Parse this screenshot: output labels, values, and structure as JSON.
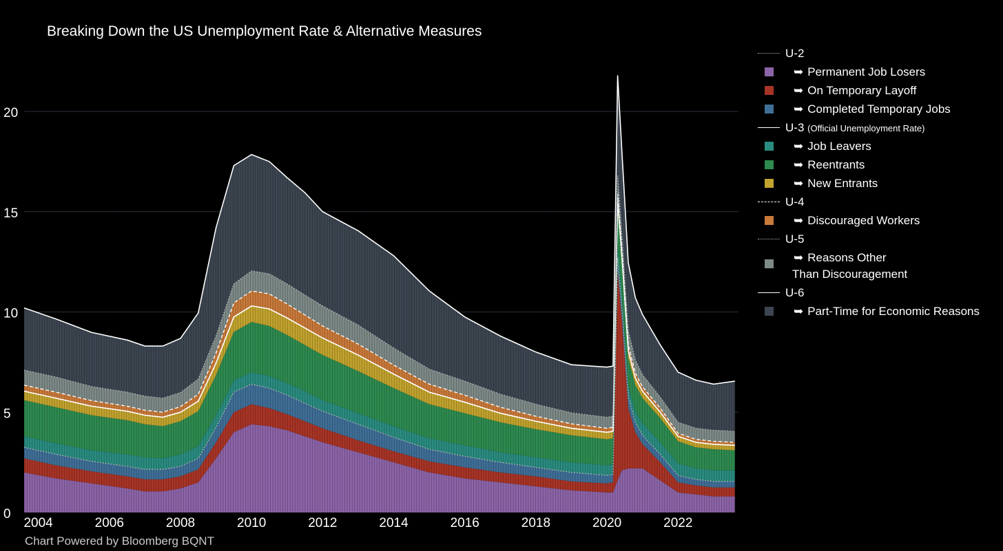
{
  "title": "Breaking Down the US Unemployment Rate & Alternative Measures",
  "footer": "Chart Powered by Bloomberg BQNT",
  "chart_data": {
    "type": "area",
    "title": "Breaking Down the US Unemployment Rate & Alternative Measures",
    "xlabel": "",
    "ylabel": "",
    "x_ticks": [
      "2004",
      "2006",
      "2008",
      "2010",
      "2012",
      "2014",
      "2016",
      "2018",
      "2020",
      "2022"
    ],
    "y_ticks": [
      "0",
      "5",
      "10",
      "15",
      "20"
    ],
    "xlim": [
      2003.6,
      2023.7
    ],
    "ylim": [
      0,
      23.5
    ],
    "grid": true,
    "legend_position": "right",
    "x": [
      2003.6,
      2004.5,
      2005.5,
      2006.5,
      2007.0,
      2007.5,
      2008.0,
      2008.5,
      2009.0,
      2009.5,
      2010.0,
      2010.5,
      2011.0,
      2011.5,
      2012.0,
      2013.0,
      2014.0,
      2015.0,
      2016.0,
      2017.0,
      2018.0,
      2019.0,
      2020.0,
      2020.17,
      2020.3,
      2020.42,
      2020.6,
      2020.8,
      2021.0,
      2021.5,
      2022.0,
      2022.5,
      2023.0,
      2023.6
    ],
    "stacked_series": [
      {
        "name": "Permanent Job Losers",
        "color": "#8c64a8",
        "values": [
          2.0,
          1.7,
          1.45,
          1.2,
          1.05,
          1.05,
          1.2,
          1.5,
          2.7,
          4.0,
          4.4,
          4.3,
          4.1,
          3.8,
          3.5,
          3.0,
          2.5,
          2.0,
          1.7,
          1.5,
          1.3,
          1.1,
          1.0,
          1.0,
          1.6,
          2.1,
          2.2,
          2.2,
          2.2,
          1.6,
          1.0,
          0.9,
          0.8,
          0.8
        ]
      },
      {
        "name": "On Temporary Layoff",
        "color": "#a83426",
        "values": [
          0.7,
          0.65,
          0.6,
          0.6,
          0.6,
          0.6,
          0.6,
          0.65,
          0.8,
          1.0,
          1.0,
          0.9,
          0.8,
          0.75,
          0.7,
          0.6,
          0.55,
          0.55,
          0.55,
          0.5,
          0.5,
          0.45,
          0.45,
          0.5,
          10.5,
          7.5,
          3.0,
          1.8,
          1.2,
          0.9,
          0.5,
          0.45,
          0.45,
          0.45
        ]
      },
      {
        "name": "Completed Temporary Jobs",
        "color": "#3f6f97",
        "values": [
          0.55,
          0.55,
          0.5,
          0.5,
          0.5,
          0.5,
          0.5,
          0.55,
          0.75,
          1.0,
          1.0,
          1.0,
          0.95,
          0.9,
          0.85,
          0.8,
          0.7,
          0.6,
          0.55,
          0.5,
          0.45,
          0.45,
          0.4,
          0.4,
          0.6,
          0.6,
          0.55,
          0.5,
          0.45,
          0.4,
          0.35,
          0.3,
          0.3,
          0.3
        ]
      },
      {
        "name": "Job Leavers",
        "color": "#2a8c80",
        "values": [
          0.55,
          0.55,
          0.55,
          0.6,
          0.6,
          0.55,
          0.6,
          0.6,
          0.6,
          0.6,
          0.6,
          0.6,
          0.6,
          0.6,
          0.55,
          0.55,
          0.55,
          0.55,
          0.55,
          0.5,
          0.5,
          0.5,
          0.5,
          0.5,
          0.6,
          0.55,
          0.55,
          0.55,
          0.6,
          0.6,
          0.6,
          0.55,
          0.55,
          0.55
        ]
      },
      {
        "name": "Reentrants",
        "color": "#2e8b50",
        "values": [
          1.8,
          1.8,
          1.75,
          1.7,
          1.65,
          1.6,
          1.65,
          1.75,
          2.0,
          2.4,
          2.5,
          2.5,
          2.4,
          2.3,
          2.25,
          2.1,
          1.9,
          1.7,
          1.6,
          1.5,
          1.4,
          1.35,
          1.3,
          1.3,
          1.8,
          1.6,
          1.4,
          1.3,
          1.25,
          1.2,
          1.1,
          1.05,
          1.05,
          1.0
        ]
      },
      {
        "name": "New Entrants",
        "color": "#c2a32e",
        "values": [
          0.45,
          0.45,
          0.45,
          0.45,
          0.45,
          0.45,
          0.45,
          0.5,
          0.6,
          0.75,
          0.8,
          0.85,
          0.85,
          0.85,
          0.85,
          0.8,
          0.7,
          0.6,
          0.55,
          0.45,
          0.4,
          0.35,
          0.35,
          0.35,
          0.45,
          0.4,
          0.35,
          0.35,
          0.35,
          0.3,
          0.25,
          0.25,
          0.25,
          0.25
        ]
      },
      {
        "name": "Discouraged Workers",
        "color": "#c97a3a",
        "values": [
          0.3,
          0.3,
          0.28,
          0.25,
          0.25,
          0.25,
          0.28,
          0.35,
          0.5,
          0.7,
          0.75,
          0.75,
          0.7,
          0.65,
          0.6,
          0.55,
          0.45,
          0.4,
          0.35,
          0.3,
          0.25,
          0.22,
          0.2,
          0.2,
          0.35,
          0.3,
          0.3,
          0.25,
          0.22,
          0.2,
          0.15,
          0.15,
          0.15,
          0.15
        ]
      },
      {
        "name": "Reasons Other Than Discouragement",
        "color": "#7d8a87",
        "values": [
          0.75,
          0.75,
          0.7,
          0.7,
          0.7,
          0.7,
          0.7,
          0.75,
          0.85,
          0.95,
          1.0,
          1.0,
          1.0,
          1.0,
          1.0,
          0.95,
          0.85,
          0.75,
          0.7,
          0.65,
          0.6,
          0.55,
          0.55,
          0.55,
          0.9,
          0.75,
          0.7,
          0.65,
          0.6,
          0.55,
          0.55,
          0.55,
          0.55,
          0.55
        ]
      },
      {
        "name": "Part-Time for Economic Reasons",
        "color": "#3c4550",
        "values": [
          3.1,
          2.9,
          2.7,
          2.6,
          2.5,
          2.6,
          2.7,
          3.3,
          5.4,
          5.9,
          5.8,
          5.6,
          5.3,
          5.1,
          4.7,
          4.7,
          4.6,
          3.9,
          3.2,
          2.9,
          2.6,
          2.4,
          2.5,
          2.5,
          5.0,
          4.2,
          3.4,
          3.1,
          3.0,
          2.6,
          2.5,
          2.4,
          2.3,
          2.5
        ]
      }
    ],
    "line_series": [
      {
        "name": "U-2",
        "style": "dotted-grey",
        "after_series_index": 2
      },
      {
        "name": "U-3",
        "style": "solid",
        "after_series_index": 5
      },
      {
        "name": "U-4",
        "style": "dashed",
        "after_series_index": 6
      },
      {
        "name": "U-5",
        "style": "dotted-grey",
        "after_series_index": 7
      },
      {
        "name": "U-6",
        "style": "solid",
        "after_series_index": 8
      }
    ]
  },
  "legend": {
    "u2": "U-2",
    "permanent_job_losers": "Permanent Job Losers",
    "on_temporary_layoff": "On Temporary Layoff",
    "completed_temporary_jobs": "Completed Temporary Jobs",
    "u3": "U-3",
    "u3_note": "(Official Unemployment Rate)",
    "job_leavers": "Job Leavers",
    "reentrants": "Reentrants",
    "new_entrants": "New Entrants",
    "u4": "U-4",
    "discouraged_workers": "Discouraged Workers",
    "u5": "U-5",
    "reasons_other_line1": "Reasons Other",
    "reasons_other_line2": "Than Discouragement",
    "u6": "U-6",
    "part_time": "Part-Time for Economic Reasons",
    "arrow": "➥"
  },
  "colors": {
    "background": "#000000",
    "grid": "#2f3441",
    "line_white": "#ffffff",
    "line_grey": "#a9b5b5"
  }
}
